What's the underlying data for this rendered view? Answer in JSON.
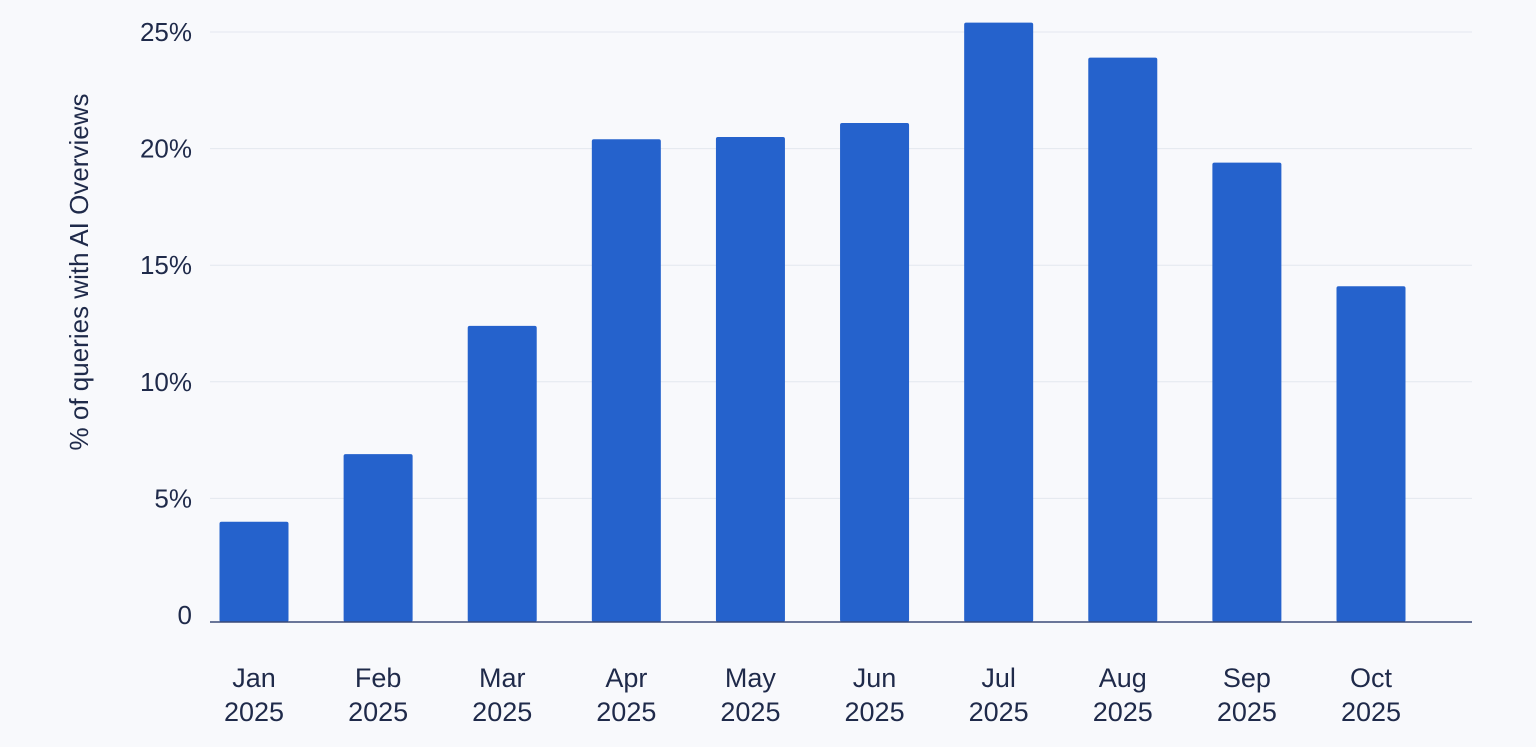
{
  "chart_data": {
    "type": "bar",
    "title": "",
    "xlabel": "",
    "ylabel": "% of queries with AI Overviews",
    "categories": [
      "Jan 2025",
      "Feb 2025",
      "Mar 2025",
      "Apr 2025",
      "May 2025",
      "Jun 2025",
      "Jul 2025",
      "Aug 2025",
      "Sep 2025",
      "Oct 2025"
    ],
    "category_lines": [
      [
        "Jan",
        "2025"
      ],
      [
        "Feb",
        "2025"
      ],
      [
        "Mar",
        "2025"
      ],
      [
        "Apr",
        "2025"
      ],
      [
        "May",
        "2025"
      ],
      [
        "Jun",
        "2025"
      ],
      [
        "Jul",
        "2025"
      ],
      [
        "Aug",
        "2025"
      ],
      [
        "Sep",
        "2025"
      ],
      [
        "Oct",
        "2025"
      ]
    ],
    "values": [
      4.0,
      6.9,
      12.4,
      20.4,
      20.5,
      21.1,
      25.4,
      23.9,
      19.4,
      14.1
    ],
    "ylim": [
      0,
      25
    ],
    "yticks": [
      0,
      5,
      10,
      15,
      20,
      25
    ],
    "ytick_labels": [
      "0",
      "5%",
      "10%",
      "15%",
      "20%",
      "25%"
    ],
    "grid": true,
    "bar_color": "#2562cc",
    "grid_color": "#e3e7ef",
    "axis_color": "#3a4a78"
  }
}
